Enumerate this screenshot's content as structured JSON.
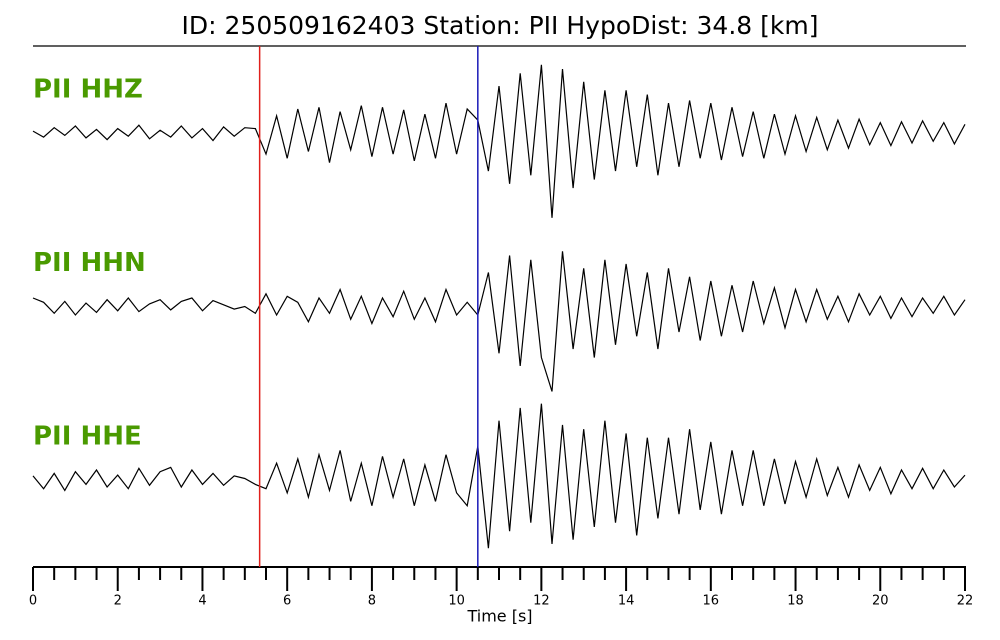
{
  "chart_data": {
    "type": "line",
    "title": "ID: 250509162403   Station: PII   HypoDist:    34.8 [km]",
    "xlabel": "Time [s]",
    "xlim": [
      0,
      22
    ],
    "xticks": [
      0,
      2,
      4,
      6,
      8,
      10,
      12,
      14,
      16,
      18,
      20,
      22
    ],
    "xticks_minor": [
      0.5,
      1,
      1.5,
      2.5,
      3,
      3.5,
      4.5,
      5,
      5.5,
      6.5,
      7,
      7.5,
      8.5,
      9,
      9.5,
      10.5,
      11,
      11.5,
      12.5,
      13,
      13.5,
      14.5,
      15,
      15.5,
      16.5,
      17,
      17.5,
      18.5,
      19,
      19.5,
      20.5,
      21,
      21.5
    ],
    "ylim": [
      -1,
      1
    ],
    "label_color": "#4a9a00",
    "picks": [
      {
        "x": 5.35,
        "color": "#e0201b"
      },
      {
        "x": 10.5,
        "color": "#1a1ab8"
      }
    ],
    "x": [
      0,
      0.25,
      0.5,
      0.75,
      1,
      1.25,
      1.5,
      1.75,
      2,
      2.25,
      2.5,
      2.75,
      3,
      3.25,
      3.5,
      3.75,
      4,
      4.25,
      4.5,
      4.75,
      5,
      5.25,
      5.5,
      5.75,
      6,
      6.25,
      6.5,
      6.75,
      7,
      7.25,
      7.5,
      7.75,
      8,
      8.25,
      8.5,
      8.75,
      9,
      9.25,
      9.5,
      9.75,
      10,
      10.25,
      10.5,
      10.75,
      11,
      11.25,
      11.5,
      11.75,
      12,
      12.25,
      12.5,
      12.75,
      13,
      13.25,
      13.5,
      13.75,
      14,
      14.25,
      14.5,
      14.75,
      15,
      15.25,
      15.5,
      15.75,
      16,
      16.25,
      16.5,
      16.75,
      17,
      17.25,
      17.5,
      17.75,
      18,
      18.25,
      18.5,
      18.75,
      19,
      19.25,
      19.5,
      19.75,
      20,
      20.25,
      20.5,
      20.75,
      21,
      21.25,
      21.5,
      21.75,
      22
    ],
    "series": [
      {
        "name": "PII HHZ",
        "color": "#000000",
        "values": [
          0.02,
          -0.05,
          0.06,
          -0.03,
          0.08,
          -0.06,
          0.04,
          -0.08,
          0.05,
          -0.04,
          0.09,
          -0.07,
          0.03,
          -0.05,
          0.08,
          -0.06,
          0.05,
          -0.09,
          0.07,
          -0.04,
          0.06,
          0.05,
          -0.25,
          0.2,
          -0.3,
          0.28,
          -0.22,
          0.3,
          -0.35,
          0.25,
          -0.2,
          0.32,
          -0.28,
          0.3,
          -0.25,
          0.27,
          -0.33,
          0.22,
          -0.3,
          0.35,
          -0.25,
          0.28,
          0.15,
          -0.45,
          0.55,
          -0.6,
          0.7,
          -0.5,
          0.8,
          -1.0,
          0.75,
          -0.65,
          0.6,
          -0.55,
          0.5,
          -0.45,
          0.5,
          -0.4,
          0.45,
          -0.5,
          0.35,
          -0.4,
          0.38,
          -0.3,
          0.35,
          -0.32,
          0.3,
          -0.28,
          0.25,
          -0.3,
          0.22,
          -0.25,
          0.2,
          -0.22,
          0.18,
          -0.2,
          0.15,
          -0.18,
          0.16,
          -0.14,
          0.12,
          -0.15,
          0.13,
          -0.12,
          0.14,
          -0.1,
          0.12,
          -0.13,
          0.1
        ]
      },
      {
        "name": "PII HHN",
        "color": "#000000",
        "values": [
          0.1,
          0.05,
          -0.08,
          0.06,
          -0.1,
          0.04,
          -0.07,
          0.08,
          -0.05,
          0.1,
          -0.06,
          0.03,
          0.08,
          -0.04,
          0.06,
          0.1,
          -0.05,
          0.07,
          0.02,
          -0.03,
          0.0,
          -0.08,
          0.15,
          -0.1,
          0.12,
          0.05,
          -0.18,
          0.1,
          -0.08,
          0.2,
          -0.15,
          0.12,
          -0.2,
          0.1,
          -0.12,
          0.18,
          -0.15,
          0.1,
          -0.18,
          0.2,
          -0.1,
          0.05,
          -0.1,
          0.4,
          -0.55,
          0.6,
          -0.7,
          0.55,
          -0.6,
          -1.0,
          0.65,
          -0.5,
          0.45,
          -0.6,
          0.55,
          -0.45,
          0.5,
          -0.35,
          0.4,
          -0.5,
          0.45,
          -0.3,
          0.35,
          -0.4,
          0.3,
          -0.35,
          0.25,
          -0.3,
          0.3,
          -0.2,
          0.22,
          -0.25,
          0.2,
          -0.18,
          0.2,
          -0.15,
          0.12,
          -0.18,
          0.15,
          -0.1,
          0.12,
          -0.14,
          0.1,
          -0.12,
          0.1,
          -0.08,
          0.12,
          -0.1,
          0.08
        ]
      },
      {
        "name": "PII HHE",
        "color": "#000000",
        "values": [
          0.05,
          -0.1,
          0.08,
          -0.12,
          0.1,
          -0.05,
          0.12,
          -0.08,
          0.06,
          -0.1,
          0.14,
          -0.06,
          0.1,
          0.15,
          -0.08,
          0.12,
          -0.05,
          0.08,
          -0.06,
          0.05,
          0.02,
          -0.05,
          -0.1,
          0.2,
          -0.15,
          0.25,
          -0.2,
          0.3,
          -0.12,
          0.35,
          -0.25,
          0.2,
          -0.3,
          0.28,
          -0.2,
          0.25,
          -0.3,
          0.18,
          -0.25,
          0.3,
          -0.15,
          -0.3,
          0.4,
          -0.8,
          0.7,
          -0.6,
          0.85,
          -0.5,
          0.9,
          -0.75,
          0.65,
          -0.7,
          0.6,
          -0.55,
          0.7,
          -0.5,
          0.55,
          -0.65,
          0.5,
          -0.45,
          0.5,
          -0.4,
          0.6,
          -0.35,
          0.45,
          -0.4,
          0.35,
          -0.3,
          0.35,
          -0.3,
          0.25,
          -0.28,
          0.22,
          -0.2,
          0.25,
          -0.18,
          0.15,
          -0.2,
          0.18,
          -0.12,
          0.15,
          -0.16,
          0.12,
          -0.1,
          0.14,
          -0.1,
          0.12,
          -0.08,
          0.06
        ]
      }
    ]
  }
}
